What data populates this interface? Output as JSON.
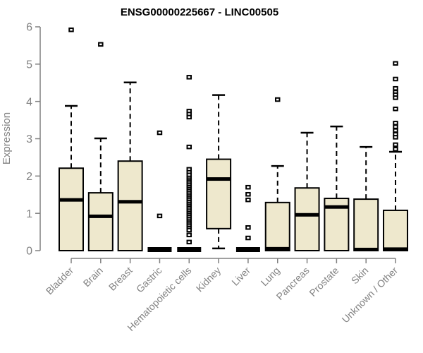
{
  "chart_data": {
    "type": "boxplot",
    "title": "ENSG00000225667 - LINC00505",
    "ylabel": "Expression",
    "xlabel": "",
    "ylim": [
      0,
      6
    ],
    "yticks": [
      0,
      1,
      2,
      3,
      4,
      5,
      6
    ],
    "grid": "off",
    "legend": "none",
    "categories": [
      "Bladder",
      "Brain",
      "Breast",
      "Gastric",
      "Hematopoietic cells",
      "Kidney",
      "Liver",
      "Lung",
      "Pancreas",
      "Prostate",
      "Skin",
      "Unknown / Other"
    ],
    "series": [
      {
        "name": "Bladder",
        "collapsed": false,
        "q1": 0,
        "median": 1.36,
        "q3": 2.21,
        "whisker_low": 0,
        "whisker_high": 3.88,
        "outliers": [
          5.92
        ]
      },
      {
        "name": "Brain",
        "collapsed": false,
        "q1": 0,
        "median": 0.92,
        "q3": 1.55,
        "whisker_low": 0,
        "whisker_high": 3.01,
        "outliers": [
          5.53
        ]
      },
      {
        "name": "Breast",
        "collapsed": false,
        "q1": 0,
        "median": 1.31,
        "q3": 2.4,
        "whisker_low": 0,
        "whisker_high": 4.51,
        "outliers": []
      },
      {
        "name": "Gastric",
        "collapsed": true,
        "q1": 0,
        "median": 0.02,
        "q3": 0.04,
        "whisker_low": 0,
        "whisker_high": 0.04,
        "outliers": [
          3.16,
          0.93
        ]
      },
      {
        "name": "Hematopoietic cells",
        "collapsed": true,
        "q1": 0,
        "median": 0.02,
        "q3": 0.04,
        "whisker_low": 0,
        "whisker_high": 0.04,
        "outliers": [
          4.65,
          3.74,
          3.66,
          3.58,
          2.78,
          2.18,
          2.1,
          2.03,
          1.95,
          1.9,
          1.85,
          1.8,
          1.75,
          1.7,
          1.65,
          1.6,
          1.55,
          1.5,
          1.45,
          1.4,
          1.35,
          1.3,
          1.25,
          1.2,
          1.15,
          1.1,
          1.05,
          1.0,
          0.95,
          0.9,
          0.85,
          0.8,
          0.75,
          0.7,
          0.65,
          0.6,
          0.55,
          0.42,
          0.23
        ]
      },
      {
        "name": "Kidney",
        "collapsed": false,
        "q1": 0.59,
        "median": 1.92,
        "q3": 2.45,
        "whisker_low": 0.06,
        "whisker_high": 4.17,
        "outliers": []
      },
      {
        "name": "Liver",
        "collapsed": true,
        "q1": 0,
        "median": 0.02,
        "q3": 0.04,
        "whisker_low": 0,
        "whisker_high": 0.04,
        "outliers": [
          1.7,
          1.51,
          1.36,
          0.62,
          0.34
        ]
      },
      {
        "name": "Lung",
        "collapsed": false,
        "q1": 0,
        "median": 0.05,
        "q3": 1.29,
        "whisker_low": 0,
        "whisker_high": 2.27,
        "outliers": [
          4.05
        ]
      },
      {
        "name": "Pancreas",
        "collapsed": false,
        "q1": 0,
        "median": 0.96,
        "q3": 1.68,
        "whisker_low": 0,
        "whisker_high": 3.16,
        "outliers": []
      },
      {
        "name": "Prostate",
        "collapsed": false,
        "q1": 0,
        "median": 1.17,
        "q3": 1.4,
        "whisker_low": 0,
        "whisker_high": 3.33,
        "outliers": []
      },
      {
        "name": "Skin",
        "collapsed": false,
        "q1": 0,
        "median": 0.03,
        "q3": 1.38,
        "whisker_low": 0,
        "whisker_high": 2.78,
        "outliers": []
      },
      {
        "name": "Unknown / Other",
        "collapsed": false,
        "q1": 0,
        "median": 0.04,
        "q3": 1.08,
        "whisker_low": 0,
        "whisker_high": 2.65,
        "outliers": [
          5.02,
          4.6,
          4.35,
          4.25,
          4.18,
          4.1,
          3.8,
          3.42,
          3.32,
          3.22,
          3.12,
          3.04,
          2.84,
          2.72
        ]
      }
    ],
    "colors": {
      "box_fill": "#EEE8CD",
      "box_border": "#000000",
      "median": "#000000",
      "whisker": "#000000",
      "outlier_border": "#000000",
      "outlier_fill": "#FFFFFF",
      "axis": "#808080",
      "tick_text": "#828282",
      "title_text": "#000000",
      "background": "#FFFFFF"
    }
  }
}
